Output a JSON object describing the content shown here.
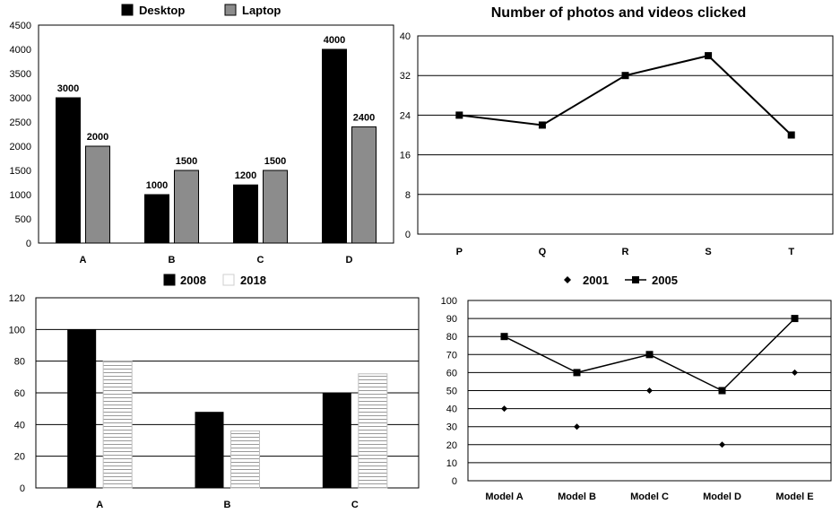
{
  "chart_data": [
    {
      "type": "bar",
      "legend_placement": "top",
      "categories": [
        "A",
        "B",
        "C",
        "D"
      ],
      "series": [
        {
          "name": "Desktop",
          "values": [
            3000,
            1000,
            1200,
            4000
          ]
        },
        {
          "name": "Laptop",
          "values": [
            2000,
            1500,
            1500,
            2400
          ]
        }
      ],
      "data_labels": [
        [
          "3000",
          "1000",
          "1200",
          "4000"
        ],
        [
          "2000",
          "1500",
          "1500",
          "2400"
        ]
      ],
      "yticks": [
        "0",
        "500",
        "1000",
        "1500",
        "2000",
        "2500",
        "3000",
        "3500",
        "4000",
        "4500"
      ],
      "ylim": [
        0,
        4500
      ],
      "grid": false,
      "colors": [
        "#000000",
        "#8c8c8c"
      ]
    },
    {
      "type": "line",
      "title": "Number of photos and videos clicked",
      "categories": [
        "P",
        "Q",
        "R",
        "S",
        "T"
      ],
      "series": [
        {
          "values": [
            24,
            22,
            32,
            36,
            20
          ]
        }
      ],
      "yticks": [
        "0",
        "8",
        "16",
        "24",
        "32",
        "40"
      ],
      "ylim": [
        0,
        40
      ],
      "grid": true
    },
    {
      "type": "bar",
      "legend_placement": "top",
      "categories": [
        "A",
        "B",
        "C"
      ],
      "series": [
        {
          "name": "2008",
          "values": [
            100,
            48,
            60
          ]
        },
        {
          "name": "2018",
          "values": [
            80,
            36,
            72
          ]
        }
      ],
      "yticks": [
        "0",
        "20",
        "40",
        "60",
        "80",
        "100",
        "120"
      ],
      "ylim": [
        0,
        120
      ],
      "grid": true,
      "colors": [
        "#000000",
        "#ffffff"
      ]
    },
    {
      "type": "line",
      "legend_placement": "top",
      "categories": [
        "Model A",
        "Model B",
        "Model C",
        "Model D",
        "Model E"
      ],
      "series": [
        {
          "name": "2001",
          "marker": "diamond",
          "line": false,
          "values": [
            40,
            30,
            50,
            20,
            60
          ]
        },
        {
          "name": "2005",
          "marker": "square",
          "line": true,
          "values": [
            80,
            60,
            70,
            50,
            90
          ]
        }
      ],
      "yticks": [
        "0",
        "10",
        "20",
        "30",
        "40",
        "50",
        "60",
        "70",
        "80",
        "90",
        "100"
      ],
      "ylim": [
        0,
        100
      ],
      "grid": true
    }
  ]
}
